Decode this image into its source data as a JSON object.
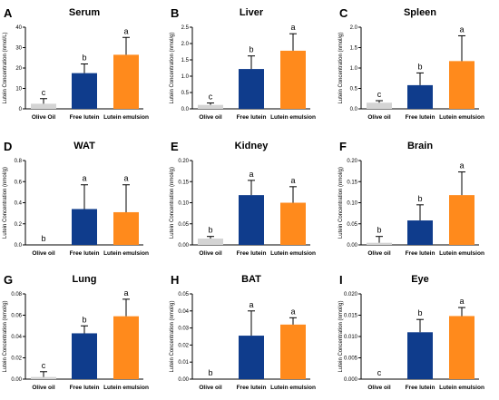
{
  "colors": {
    "olive_oil": "#d4d4d4",
    "free_lutein": "#0f3c8c",
    "lutein_emulsion": "#ff8a1c",
    "axis": "#000000"
  },
  "chart_data": [
    {
      "panel": "A",
      "title": "Serum",
      "type": "bar",
      "ylabel": "Lutein Concentration (nmol/L)",
      "categories": [
        "Olive Oil",
        "Free lutein",
        "Lutein emulsion"
      ],
      "values": [
        2.5,
        17.5,
        26.5
      ],
      "errors": [
        2.5,
        4.5,
        8.5
      ],
      "letters": [
        "c",
        "b",
        "a"
      ],
      "ylim": [
        0,
        40
      ],
      "yticks": [
        "0",
        "10",
        "20",
        "30",
        "40"
      ]
    },
    {
      "panel": "B",
      "title": "Liver",
      "type": "bar",
      "ylabel": "Lutein Concentration (nmol/g)",
      "categories": [
        "Olive oil",
        "Free lutein",
        "Lutein emulsion"
      ],
      "values": [
        0.12,
        1.22,
        1.78
      ],
      "errors": [
        0.06,
        0.4,
        0.52
      ],
      "letters": [
        "c",
        "b",
        "a"
      ],
      "ylim": [
        0,
        2.5
      ],
      "yticks": [
        "0.0",
        "0.5",
        "1.0",
        "1.5",
        "2.0",
        "2.5"
      ]
    },
    {
      "panel": "C",
      "title": "Spleen",
      "type": "bar",
      "ylabel": "Lutein Concentration (nmol/g)",
      "categories": [
        "Olive oil",
        "Free lutein",
        "Lutein emulsion"
      ],
      "values": [
        0.15,
        0.58,
        1.17
      ],
      "errors": [
        0.05,
        0.3,
        0.62
      ],
      "letters": [
        "c",
        "b",
        "a"
      ],
      "ylim": [
        0,
        2.0
      ],
      "yticks": [
        "0.0",
        "0.5",
        "1.0",
        "1.5",
        "2.0"
      ]
    },
    {
      "panel": "D",
      "title": "WAT",
      "type": "bar",
      "ylabel": "Lutein Concentration (nmol/g)",
      "categories": [
        "Olive oil",
        "Free lutein",
        "Lutein emulsion"
      ],
      "values": [
        0,
        0.34,
        0.31
      ],
      "errors": [
        0,
        0.23,
        0.26
      ],
      "letters": [
        "b",
        "a",
        "a"
      ],
      "ylim": [
        0,
        0.8
      ],
      "yticks": [
        "0.0",
        "0.2",
        "0.4",
        "0.6",
        "0.8"
      ]
    },
    {
      "panel": "E",
      "title": "Kidney",
      "type": "bar",
      "ylabel": "Lutein Concentration (nmol/g)",
      "categories": [
        "Olive oil",
        "Free lutein",
        "Lutein emulsion"
      ],
      "values": [
        0.015,
        0.118,
        0.1
      ],
      "errors": [
        0.005,
        0.035,
        0.038
      ],
      "letters": [
        "b",
        "a",
        "a"
      ],
      "ylim": [
        0,
        0.2
      ],
      "yticks": [
        "0.00",
        "0.05",
        "0.10",
        "0.15",
        "0.20"
      ]
    },
    {
      "panel": "F",
      "title": "Brain",
      "type": "bar",
      "ylabel": "Lutein Concentration (nmol/g)",
      "categories": [
        "Olive oil",
        "Free lutein",
        "Lutein emulsion"
      ],
      "values": [
        0.005,
        0.058,
        0.118
      ],
      "errors": [
        0.015,
        0.037,
        0.055
      ],
      "letters": [
        "b",
        "b",
        "a"
      ],
      "ylim": [
        0,
        0.2
      ],
      "yticks": [
        "0.00",
        "0.05",
        "0.10",
        "0.15",
        "0.20"
      ]
    },
    {
      "panel": "G",
      "title": "Lung",
      "type": "bar",
      "ylabel": "Lutein Concentration (nmol/g)",
      "categories": [
        "Olive oil",
        "Free lutein",
        "Lutein emulsion"
      ],
      "values": [
        0.002,
        0.043,
        0.059
      ],
      "errors": [
        0.005,
        0.007,
        0.016
      ],
      "letters": [
        "c",
        "b",
        "a"
      ],
      "ylim": [
        0,
        0.08
      ],
      "yticks": [
        "0.00",
        "0.02",
        "0.04",
        "0.06",
        "0.08"
      ]
    },
    {
      "panel": "H",
      "title": "BAT",
      "type": "bar",
      "ylabel": "Lutein Concentration (nmol/g)",
      "categories": [
        "Olive oil",
        "Free lutein",
        "Lutein emulsion"
      ],
      "values": [
        0,
        0.0255,
        0.032
      ],
      "errors": [
        0,
        0.0145,
        0.004
      ],
      "letters": [
        "b",
        "a",
        "a"
      ],
      "ylim": [
        0,
        0.05
      ],
      "yticks": [
        "0.00",
        "0.01",
        "0.02",
        "0.03",
        "0.04",
        "0.05"
      ]
    },
    {
      "panel": "I",
      "title": "Eye",
      "type": "bar",
      "ylabel": "Lutein Concentration (nmol/g)",
      "categories": [
        "Olive oil",
        "Free lutein",
        "Lutein emulsion"
      ],
      "values": [
        0,
        0.011,
        0.0148
      ],
      "errors": [
        0,
        0.003,
        0.002
      ],
      "letters": [
        "c",
        "b",
        "a"
      ],
      "ylim": [
        0,
        0.02
      ],
      "yticks": [
        "0.000",
        "0.005",
        "0.010",
        "0.015",
        "0.020"
      ]
    }
  ]
}
